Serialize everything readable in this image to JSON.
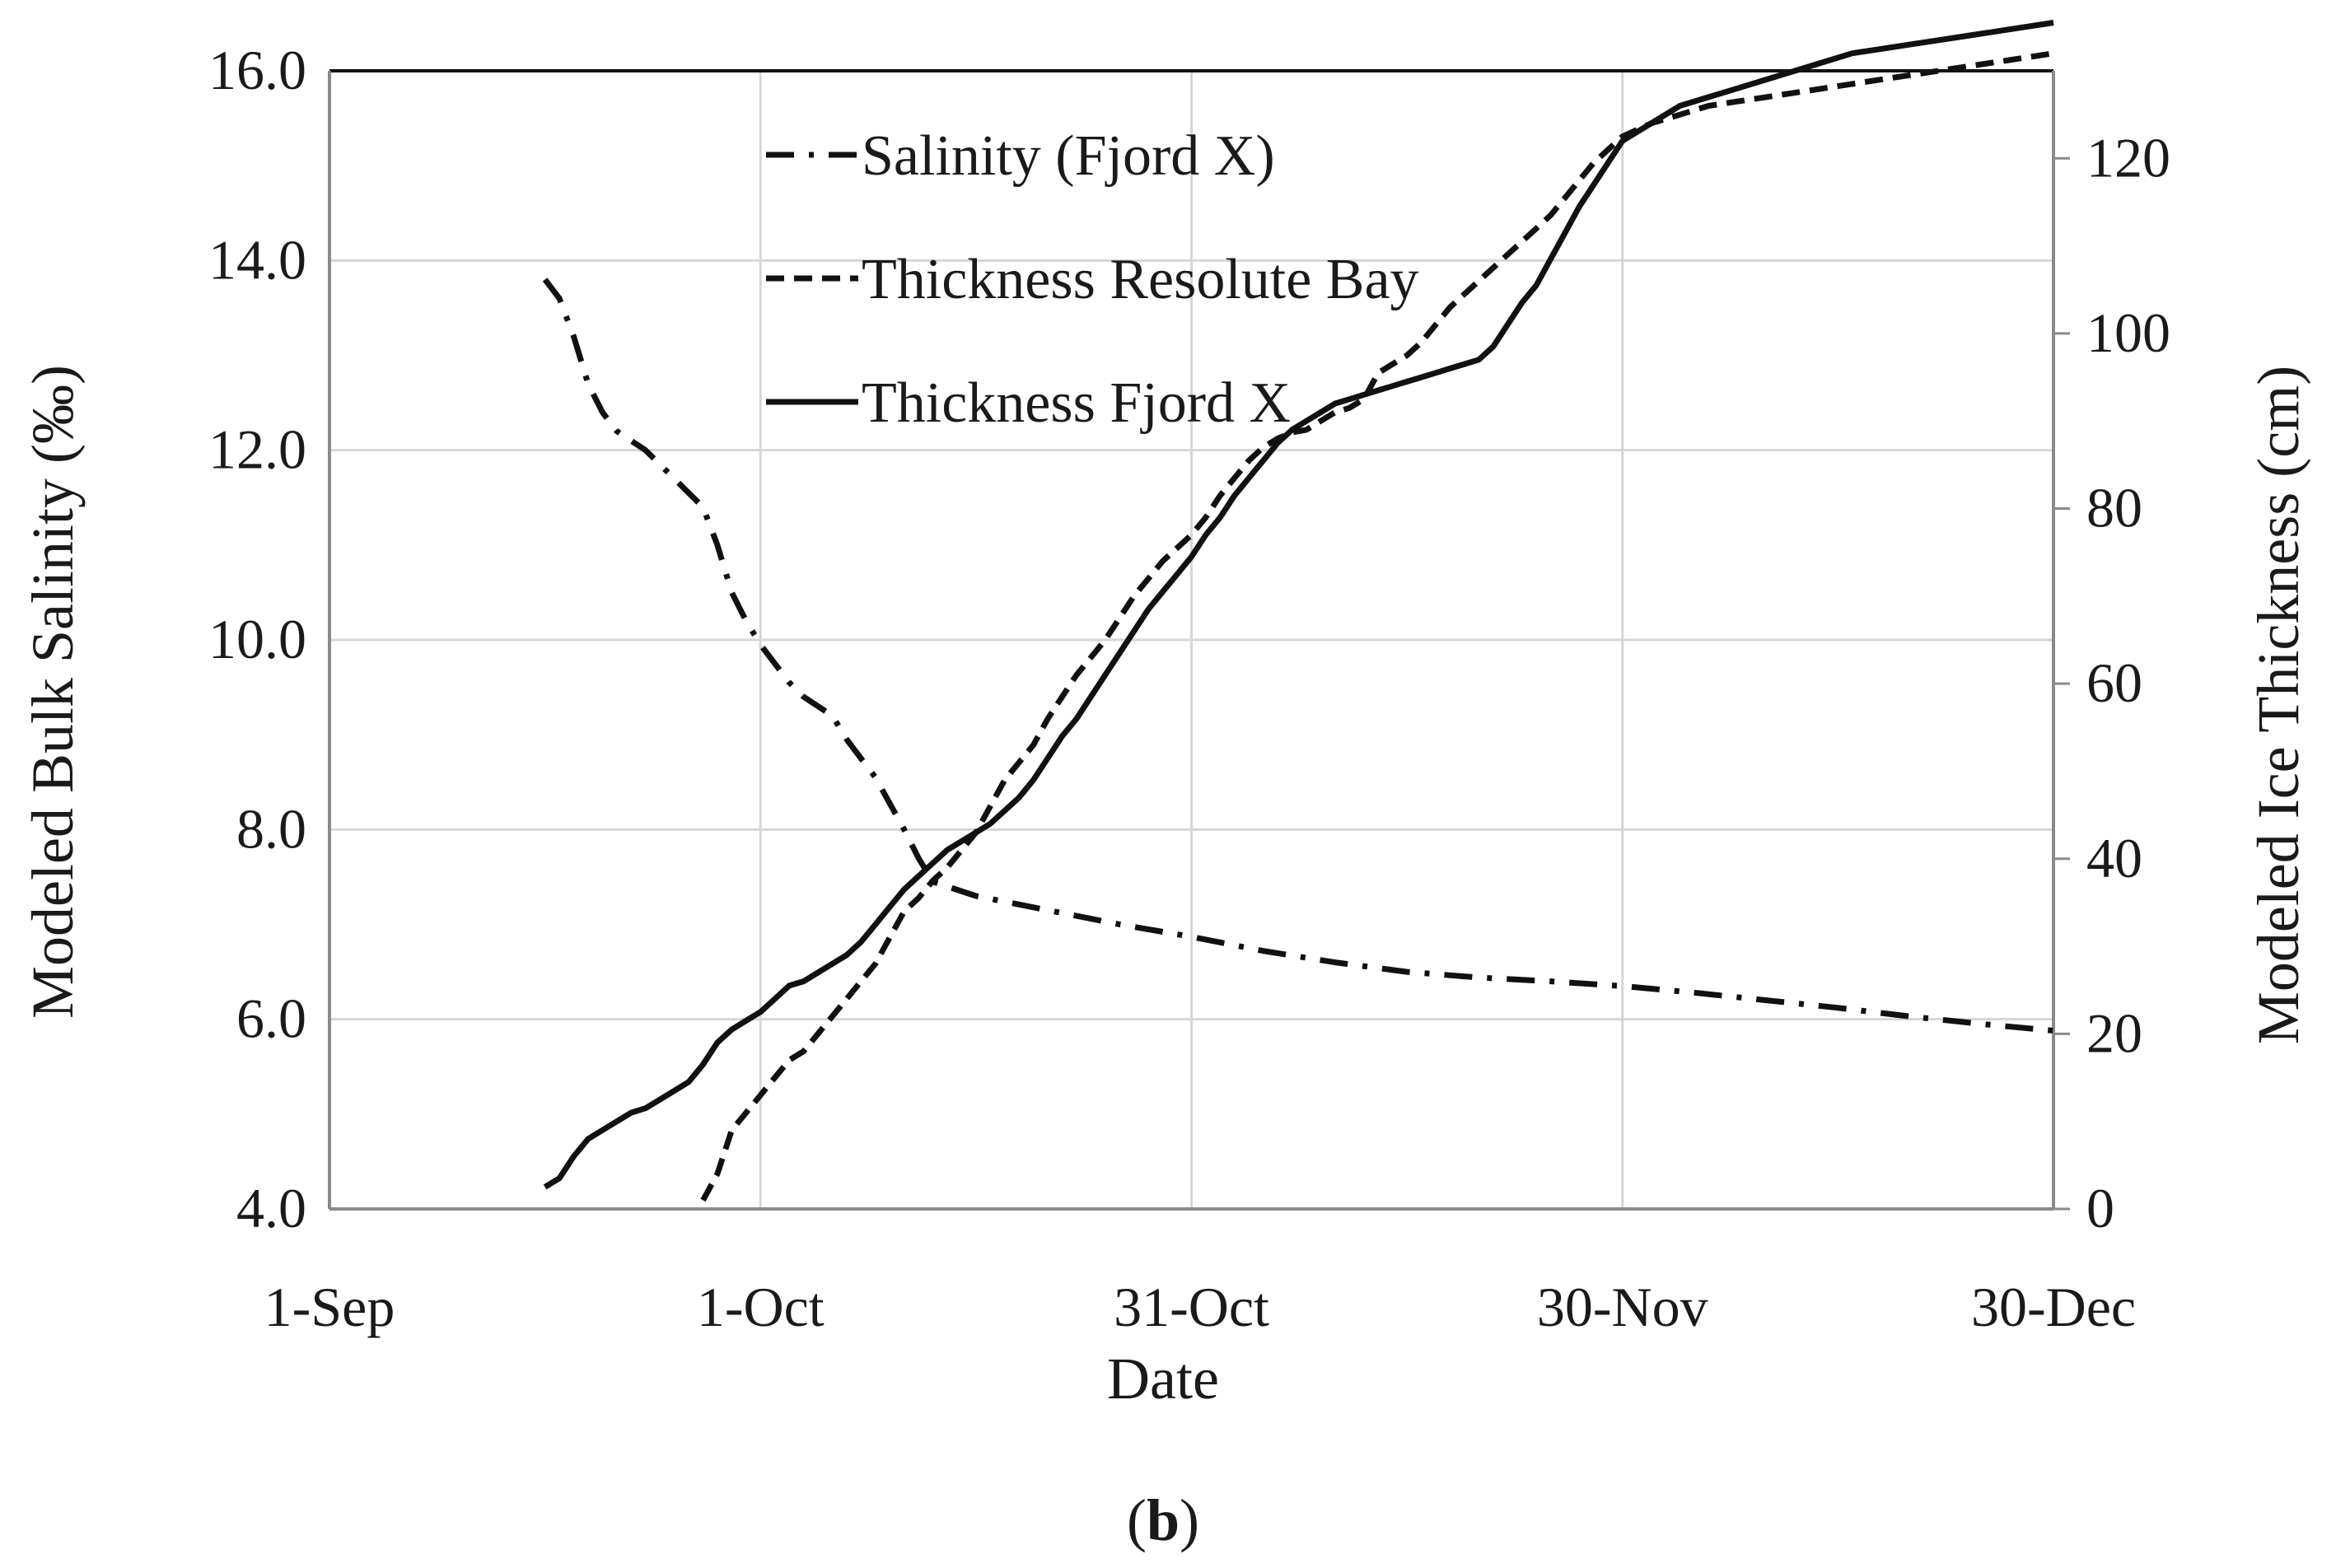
{
  "chart_data": {
    "type": "line",
    "xlabel": "Date",
    "ylabel": "Modeled Bulk Salinity (‰)",
    "y2label": "Modeled Ice Thickness (cm)",
    "panel_label_open": "(",
    "panel_label_letter": "b",
    "panel_label_close": ")",
    "x_unit": "days since 1-Sep",
    "xlim": [
      0,
      120
    ],
    "x_ticks": [
      {
        "x": 0,
        "label": "1-Sep"
      },
      {
        "x": 30,
        "label": "1-Oct"
      },
      {
        "x": 60,
        "label": "31-Oct"
      },
      {
        "x": 90,
        "label": "30-Nov"
      },
      {
        "x": 120,
        "label": "30-Dec"
      }
    ],
    "ylim": [
      4,
      16
    ],
    "y_ticks": [
      "4.0",
      "6.0",
      "8.0",
      "10.0",
      "12.0",
      "14.0",
      "16.0"
    ],
    "y2lim": [
      0,
      130
    ],
    "y2_ticks": [
      "0",
      "20",
      "40",
      "60",
      "80",
      "100",
      "120"
    ],
    "grid": true,
    "legend_position": "top-center",
    "series": [
      {
        "name": "Salinity (Fjord X)",
        "axis": "left",
        "style": "dash-dot",
        "x": [
          15,
          16,
          17,
          18,
          19,
          20,
          22,
          24,
          25,
          26,
          27,
          28,
          29,
          30,
          31,
          32,
          33,
          34,
          35,
          36,
          38,
          40,
          41,
          42,
          45,
          50,
          55,
          60,
          65,
          70,
          75,
          80,
          85,
          90,
          95,
          100,
          105,
          110,
          115,
          120
        ],
        "values": [
          13.8,
          13.6,
          13.2,
          12.7,
          12.4,
          12.2,
          12.0,
          11.7,
          11.55,
          11.4,
          11.0,
          10.5,
          10.2,
          9.95,
          9.75,
          9.55,
          9.4,
          9.3,
          9.2,
          8.95,
          8.55,
          8.0,
          7.7,
          7.45,
          7.3,
          7.15,
          7.0,
          6.87,
          6.72,
          6.6,
          6.5,
          6.44,
          6.4,
          6.35,
          6.28,
          6.2,
          6.12,
          6.03,
          5.95,
          5.88
        ]
      },
      {
        "name": "Thickness Resolute Bay",
        "axis": "right",
        "style": "dashed",
        "x": [
          26,
          27,
          28,
          29,
          30,
          31,
          32,
          33,
          34,
          35,
          36,
          37,
          38,
          39,
          40,
          41,
          42,
          43,
          44,
          45,
          46,
          47,
          48,
          49,
          50,
          51,
          52,
          53,
          54,
          55,
          56,
          57,
          58,
          59,
          60,
          61,
          62,
          63,
          64,
          65,
          66,
          67,
          68,
          69,
          70,
          71,
          72,
          73,
          74,
          75,
          76,
          77,
          78,
          79,
          80,
          81,
          82,
          83,
          84,
          85,
          86,
          87,
          88,
          89,
          90,
          92,
          94,
          96,
          98,
          100,
          102,
          104,
          106,
          108,
          110,
          112,
          114,
          116,
          118,
          120
        ],
        "values": [
          1,
          4,
          9,
          11,
          13,
          15,
          17,
          18,
          20,
          22,
          24,
          26,
          28,
          31,
          34,
          35.5,
          37.5,
          39,
          41,
          43,
          46,
          49,
          51,
          53,
          56,
          58.5,
          61,
          63,
          65,
          67.5,
          70,
          72,
          74,
          75.5,
          77,
          79,
          81.5,
          83.5,
          85.5,
          87,
          88,
          88.7,
          89,
          90,
          91,
          91.5,
          92.5,
          95.5,
          96.5,
          97.5,
          99,
          101,
          103,
          104.5,
          106,
          107.5,
          109,
          110.5,
          112,
          113.5,
          115.5,
          117.5,
          119.5,
          121,
          122.5,
          124,
          125,
          126,
          126.5,
          127,
          127.5,
          128,
          128.5,
          129,
          129.5,
          130,
          130.5,
          131,
          131.5,
          132
        ]
      },
      {
        "name": "Thickness Fjord X",
        "axis": "right",
        "style": "solid",
        "x": [
          15,
          16,
          17,
          18,
          19,
          20,
          21,
          22,
          23,
          24,
          25,
          26,
          27,
          28,
          29,
          30,
          31,
          32,
          33,
          34,
          35,
          36,
          37,
          38,
          39,
          40,
          41,
          42,
          43,
          44,
          45,
          46,
          47,
          48,
          49,
          50,
          51,
          52,
          53,
          54,
          55,
          56,
          57,
          58,
          59,
          60,
          61,
          62,
          63,
          64,
          65,
          66,
          67,
          68,
          69,
          70,
          71,
          72,
          73,
          74,
          75,
          76,
          77,
          78,
          79,
          80,
          81,
          82,
          83,
          84,
          85,
          86,
          87,
          88,
          89,
          90,
          92,
          94,
          96,
          98,
          100,
          102,
          104,
          106,
          108,
          110,
          112,
          114,
          116,
          118,
          120
        ],
        "values": [
          2.5,
          3.5,
          6,
          8,
          9,
          10,
          11,
          11.5,
          12.5,
          13.5,
          14.5,
          16.5,
          19,
          20.5,
          21.5,
          22.5,
          24,
          25.5,
          26,
          27,
          28,
          29,
          30.5,
          32.5,
          34.5,
          36.5,
          38,
          39.5,
          41,
          42,
          43,
          44,
          45.5,
          47,
          49,
          51.5,
          54,
          56,
          58.5,
          61,
          63.5,
          66,
          68.5,
          70.5,
          72.5,
          74.5,
          77,
          79,
          81.5,
          83.5,
          85.5,
          87.5,
          89,
          90,
          91,
          92,
          92.5,
          93,
          93.5,
          94,
          94.5,
          95,
          95.5,
          96,
          96.5,
          97,
          98.5,
          101,
          103.5,
          105.5,
          108.5,
          111.5,
          114.5,
          117,
          119.5,
          122,
          124,
          126,
          127,
          128,
          129,
          130,
          131,
          132,
          132.5,
          133,
          133.5,
          134,
          134.5,
          135,
          135.5
        ]
      }
    ]
  }
}
